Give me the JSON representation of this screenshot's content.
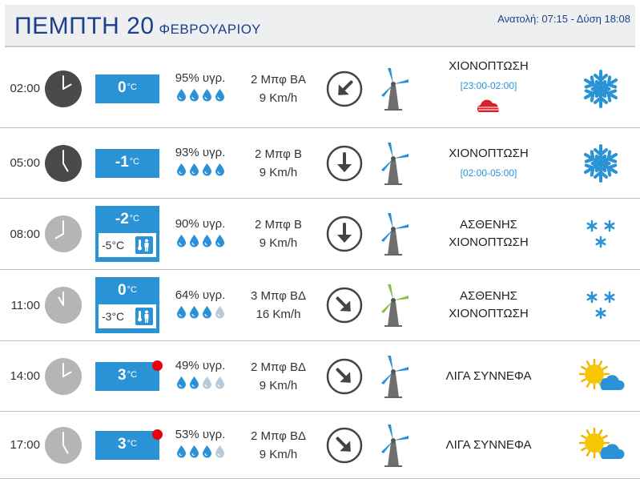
{
  "header": {
    "day": "ΠΕΜΠΤΗ 20",
    "month": "ΦΕΒΡΟΥΑΡΙΟΥ",
    "sun_times": "Ανατολή: 07:15  - Δύση 18:08"
  },
  "colors": {
    "accent": "#2a93d5",
    "title": "#1b3f8b",
    "dot": "#e8000b",
    "clock_dark": "#4a4a4a",
    "clock_light": "#b5b5b5"
  },
  "rows": [
    {
      "time": "02:00",
      "clock": "dark",
      "temp": "0",
      "unit": "°C",
      "feels": null,
      "hot_dot": false,
      "humidity": "95% υγρ.",
      "drops_filled": 4,
      "wind": "2 Μπφ ΒΑ",
      "speed": "9 Km/h",
      "arrow": "arrow-down-left-icon",
      "mill": "gray",
      "cond1": "ΧΙΟΝΟΠΤΩΣΗ",
      "cond2": "",
      "range": "[23:00-02:00]",
      "extra": "snow-cloud-red-icon",
      "icon": "snowflake-icon"
    },
    {
      "time": "05:00",
      "clock": "dark",
      "temp": "-1",
      "unit": "°C",
      "feels": null,
      "hot_dot": false,
      "humidity": "93% υγρ.",
      "drops_filled": 4,
      "wind": "2 Μπφ Β",
      "speed": "9 Km/h",
      "arrow": "arrow-down-icon",
      "mill": "gray",
      "cond1": "ΧΙΟΝΟΠΤΩΣΗ",
      "cond2": "",
      "range": "[02:00-05:00]",
      "extra": "",
      "icon": "snowflake-icon"
    },
    {
      "time": "08:00",
      "clock": "light",
      "temp": "-2",
      "unit": "°C",
      "feels": "-5°C",
      "hot_dot": false,
      "humidity": "90% υγρ.",
      "drops_filled": 4,
      "wind": "2 Μπφ Β",
      "speed": "9 Km/h",
      "arrow": "arrow-down-icon",
      "mill": "gray",
      "cond1": "ΑΣΘΕΝΗΣ",
      "cond2": "ΧΙΟΝΟΠΤΩΣΗ",
      "range": "",
      "extra": "",
      "icon": "light-snow-icon"
    },
    {
      "time": "11:00",
      "clock": "light",
      "temp": "0",
      "unit": "°C",
      "feels": "-3°C",
      "hot_dot": false,
      "humidity": "64% υγρ.",
      "drops_filled": 3,
      "wind": "3 Μπφ ΒΔ",
      "speed": "16 Km/h",
      "arrow": "arrow-down-right-icon",
      "mill": "green",
      "cond1": "ΑΣΘΕΝΗΣ",
      "cond2": "ΧΙΟΝΟΠΤΩΣΗ",
      "range": "",
      "extra": "",
      "icon": "light-snow-icon"
    },
    {
      "time": "14:00",
      "clock": "light",
      "temp": "3",
      "unit": "°C",
      "feels": null,
      "hot_dot": true,
      "humidity": "49% υγρ.",
      "drops_filled": 2,
      "wind": "2 Μπφ ΒΔ",
      "speed": "9 Km/h",
      "arrow": "arrow-down-right-icon",
      "mill": "gray",
      "cond1": "ΛΙΓΑ ΣΥΝΝΕΦΑ",
      "cond2": "",
      "range": "",
      "extra": "",
      "icon": "sun-cloud-icon"
    },
    {
      "time": "17:00",
      "clock": "light",
      "temp": "3",
      "unit": "°C",
      "feels": null,
      "hot_dot": true,
      "humidity": "53% υγρ.",
      "drops_filled": 3,
      "wind": "2 Μπφ ΒΔ",
      "speed": "9 Km/h",
      "arrow": "arrow-down-right-icon",
      "mill": "gray",
      "cond1": "ΛΙΓΑ ΣΥΝΝΕΦΑ",
      "cond2": "",
      "range": "",
      "extra": "",
      "icon": "sun-cloud-icon"
    }
  ]
}
